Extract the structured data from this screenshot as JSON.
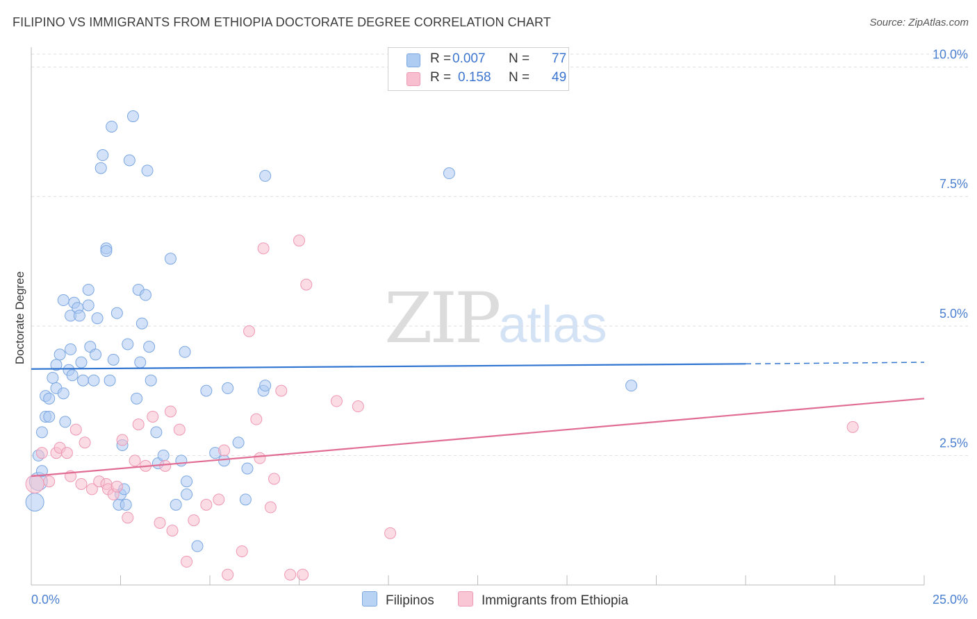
{
  "header": {
    "title": "FILIPINO VS IMMIGRANTS FROM ETHIOPIA DOCTORATE DEGREE CORRELATION CHART",
    "source": "Source: ZipAtlas.com"
  },
  "watermark": {
    "zip": "ZIP",
    "atlas": "atlas"
  },
  "legend": {
    "r_label": "R =",
    "n_label": "N =",
    "rows": [
      {
        "r": "0.007",
        "n": "77",
        "color": "#aecbf2"
      },
      {
        "r": "0.158",
        "n": "49",
        "color": "#f7bfd0"
      }
    ]
  },
  "bottom_legend": [
    {
      "label": "Filipinos",
      "color": "#b9d3f4"
    },
    {
      "label": "Immigrants from Ethiopia",
      "color": "#f8c6d5"
    }
  ],
  "chart_data": {
    "type": "scatter",
    "ylabel": "Doctorate Degree",
    "xlim": [
      0,
      25
    ],
    "ylim": [
      0,
      10.25
    ],
    "x_tick_labels": [
      "0.0%",
      "25.0%"
    ],
    "y_ticks": [
      {
        "value": 2.5,
        "label": "2.5%"
      },
      {
        "value": 5.0,
        "label": "5.0%"
      },
      {
        "value": 7.5,
        "label": "7.5%"
      },
      {
        "value": 10.0,
        "label": "10.0%"
      }
    ],
    "grid": true,
    "series": [
      {
        "name": "Filipinos",
        "color": "#aecbf2",
        "stroke": "#7aa6e0",
        "trend": {
          "x0": 0,
          "y0": 4.17,
          "x1": 20,
          "y1": 4.27,
          "dash_to_x": 25,
          "dash_to_y": 4.3,
          "color": "#2f74d0"
        },
        "points": [
          [
            0.1,
            1.6
          ],
          [
            0.2,
            2.0
          ],
          [
            0.3,
            2.2
          ],
          [
            0.2,
            2.5
          ],
          [
            0.3,
            2.95
          ],
          [
            0.4,
            3.25
          ],
          [
            0.5,
            3.25
          ],
          [
            0.4,
            3.65
          ],
          [
            0.5,
            3.6
          ],
          [
            0.6,
            4.0
          ],
          [
            0.7,
            4.25
          ],
          [
            0.7,
            3.8
          ],
          [
            0.8,
            4.45
          ],
          [
            0.9,
            3.7
          ],
          [
            0.9,
            5.5
          ],
          [
            0.95,
            3.15
          ],
          [
            1.05,
            4.15
          ],
          [
            1.1,
            4.55
          ],
          [
            1.1,
            5.2
          ],
          [
            1.15,
            4.05
          ],
          [
            1.2,
            5.45
          ],
          [
            1.3,
            5.35
          ],
          [
            1.35,
            5.2
          ],
          [
            1.4,
            4.3
          ],
          [
            1.45,
            3.95
          ],
          [
            1.6,
            5.4
          ],
          [
            1.6,
            5.7
          ],
          [
            1.65,
            4.6
          ],
          [
            1.75,
            3.95
          ],
          [
            1.8,
            4.45
          ],
          [
            1.85,
            5.15
          ],
          [
            1.95,
            8.05
          ],
          [
            2.0,
            8.3
          ],
          [
            2.1,
            6.5
          ],
          [
            2.1,
            6.45
          ],
          [
            2.2,
            3.95
          ],
          [
            2.25,
            8.85
          ],
          [
            2.3,
            4.35
          ],
          [
            2.4,
            5.25
          ],
          [
            2.45,
            1.55
          ],
          [
            2.5,
            1.75
          ],
          [
            2.55,
            2.7
          ],
          [
            2.6,
            1.85
          ],
          [
            2.65,
            1.55
          ],
          [
            2.7,
            4.65
          ],
          [
            2.75,
            8.2
          ],
          [
            2.85,
            9.05
          ],
          [
            2.95,
            3.6
          ],
          [
            3.0,
            5.7
          ],
          [
            3.05,
            4.3
          ],
          [
            3.1,
            5.05
          ],
          [
            3.2,
            5.6
          ],
          [
            3.25,
            8.0
          ],
          [
            3.3,
            4.6
          ],
          [
            3.35,
            3.95
          ],
          [
            3.5,
            2.95
          ],
          [
            3.55,
            2.35
          ],
          [
            3.7,
            2.5
          ],
          [
            3.9,
            6.3
          ],
          [
            4.05,
            1.55
          ],
          [
            4.2,
            2.4
          ],
          [
            4.3,
            4.5
          ],
          [
            4.35,
            2.0
          ],
          [
            4.35,
            1.75
          ],
          [
            4.65,
            0.75
          ],
          [
            4.9,
            3.75
          ],
          [
            5.15,
            2.55
          ],
          [
            5.4,
            2.4
          ],
          [
            5.5,
            3.8
          ],
          [
            5.8,
            2.75
          ],
          [
            6.0,
            1.65
          ],
          [
            6.05,
            2.25
          ],
          [
            6.5,
            3.75
          ],
          [
            6.55,
            3.85
          ],
          [
            6.55,
            7.9
          ],
          [
            11.7,
            7.95
          ],
          [
            16.8,
            3.85
          ]
        ]
      },
      {
        "name": "Immigrants from Ethiopia",
        "color": "#f7bfd0",
        "stroke": "#ee97b3",
        "trend": {
          "x0": 0,
          "y0": 2.1,
          "x1": 25,
          "y1": 3.6,
          "color": "#e06c93"
        },
        "points": [
          [
            0.1,
            1.95
          ],
          [
            0.3,
            2.55
          ],
          [
            0.5,
            2.0
          ],
          [
            0.7,
            2.55
          ],
          [
            0.8,
            2.65
          ],
          [
            1.0,
            2.55
          ],
          [
            1.1,
            2.1
          ],
          [
            1.25,
            3.0
          ],
          [
            1.4,
            1.95
          ],
          [
            1.5,
            2.75
          ],
          [
            1.7,
            1.85
          ],
          [
            1.9,
            2.0
          ],
          [
            2.1,
            1.95
          ],
          [
            2.15,
            1.85
          ],
          [
            2.3,
            1.75
          ],
          [
            2.4,
            1.9
          ],
          [
            2.55,
            2.8
          ],
          [
            2.7,
            1.3
          ],
          [
            2.9,
            2.4
          ],
          [
            3.0,
            3.1
          ],
          [
            3.2,
            2.3
          ],
          [
            3.4,
            3.25
          ],
          [
            3.6,
            1.2
          ],
          [
            3.75,
            2.3
          ],
          [
            3.9,
            3.35
          ],
          [
            3.95,
            1.05
          ],
          [
            4.15,
            3.0
          ],
          [
            4.35,
            0.45
          ],
          [
            4.55,
            1.25
          ],
          [
            4.9,
            1.55
          ],
          [
            5.25,
            1.65
          ],
          [
            5.4,
            2.6
          ],
          [
            5.5,
            0.2
          ],
          [
            5.9,
            0.65
          ],
          [
            6.1,
            4.9
          ],
          [
            6.3,
            3.2
          ],
          [
            6.4,
            2.45
          ],
          [
            6.5,
            6.5
          ],
          [
            6.7,
            1.5
          ],
          [
            6.8,
            2.05
          ],
          [
            7.0,
            3.75
          ],
          [
            7.25,
            0.2
          ],
          [
            7.5,
            6.65
          ],
          [
            7.6,
            0.2
          ],
          [
            7.7,
            5.8
          ],
          [
            8.55,
            3.55
          ],
          [
            9.15,
            3.45
          ],
          [
            10.05,
            1.0
          ],
          [
            23.0,
            3.05
          ]
        ]
      }
    ]
  }
}
